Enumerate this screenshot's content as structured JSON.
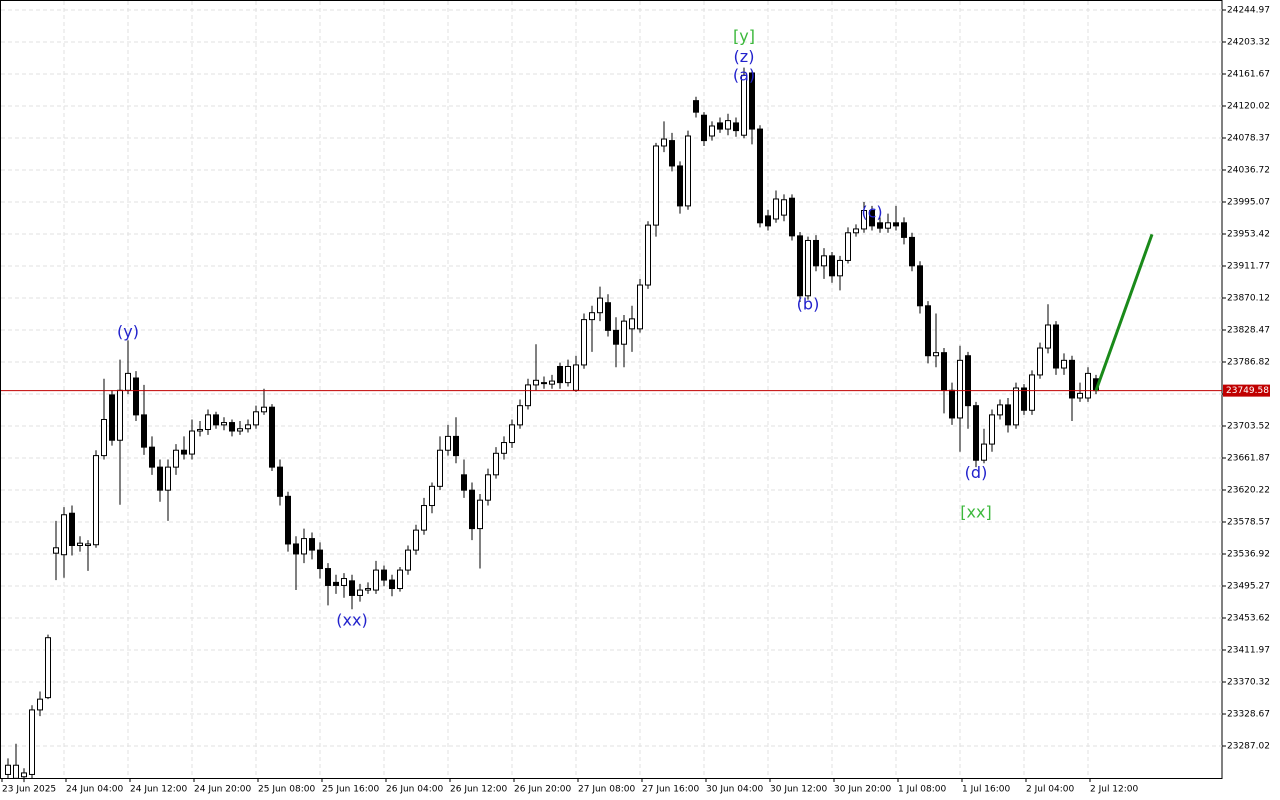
{
  "chart_data": {
    "type": "candlestick",
    "categories": [
      "23 Jun 2025",
      null,
      null,
      null,
      null,
      null,
      null,
      "24 Jun 04:00",
      null,
      null,
      null,
      null,
      null,
      null,
      null,
      "24 Jun 12:00",
      null,
      null,
      null,
      null,
      null,
      null,
      null,
      "24 Jun 20:00",
      null,
      null,
      null,
      null,
      null,
      null,
      null,
      "25 Jun 08:00",
      null,
      null,
      null,
      null,
      null,
      null,
      null,
      "25 Jun 16:00",
      null,
      null,
      null,
      null,
      null,
      null,
      null,
      "26 Jun 04:00",
      null,
      null,
      null,
      null,
      null,
      null,
      null,
      "26 Jun 12:00",
      null,
      null,
      null,
      null,
      null,
      null,
      null,
      "26 Jun 20:00",
      null,
      null,
      null,
      null,
      null,
      null,
      null,
      "27 Jun 08:00",
      null,
      null,
      null,
      null,
      null,
      null,
      null,
      "27 Jun 16:00",
      null,
      null,
      null,
      null,
      null,
      null,
      null,
      "30 Jun 04:00",
      null,
      null,
      null,
      null,
      null,
      null,
      null,
      "30 Jun 12:00",
      null,
      null,
      null,
      null,
      null,
      null,
      null,
      "30 Jun 20:00",
      null,
      null,
      null,
      null,
      null,
      null,
      null,
      "1 Jul 08:00",
      null,
      null,
      null,
      null,
      null,
      null,
      null,
      "1 Jul 16:00",
      null,
      null,
      null,
      null,
      null,
      null,
      null,
      "2 Jul 04:00",
      null,
      null,
      null,
      null,
      null,
      null,
      null,
      "2 Jul 12:00",
      null
    ],
    "open": [
      23250,
      23245,
      23247,
      23250,
      23334,
      23350,
      23538,
      23536,
      23590,
      23548,
      23548,
      23549,
      23665,
      23744,
      23685,
      23750,
      23766,
      23718,
      23676,
      23650,
      23620,
      23650,
      23672,
      23667,
      23697,
      23699,
      23718,
      23705,
      23708,
      23697,
      23700,
      23705,
      23722,
      23728,
      23650,
      23612,
      23550,
      23537,
      23557,
      23542,
      23518,
      23500,
      23496,
      23502,
      23483,
      23490,
      23490,
      23516,
      23503,
      23492,
      23516,
      23542,
      23568,
      23600,
      23625,
      23672,
      23690,
      23640,
      23620,
      23570,
      23607,
      23640,
      23668,
      23682,
      23705,
      23730,
      23757,
      23760,
      23758,
      23781,
      23760,
      23750,
      23783,
      23842,
      23851,
      23864,
      23828,
      23810,
      23830,
      23830,
      23887,
      23965,
      24068,
      24075,
      24042,
      23990,
      24127,
      24108,
      24081,
      24098,
      24090,
      24098,
      24082,
      24163,
      24090,
      23977,
      23973,
      23978,
      24000,
      23951,
      23873,
      23945,
      23912,
      23925,
      23899,
      23919,
      23955,
      23960,
      23984,
      23968,
      23961,
      23968,
      23968,
      23949,
      23912,
      23860,
      23795,
      23799,
      23750,
      23714,
      23795,
      23730,
      23659,
      23680,
      23718,
      23731,
      23705,
      23753,
      23724,
      23770,
      23805,
      23835,
      23779,
      23789,
      23740,
      23740,
      23765
    ],
    "high": [
      23271,
      23290,
      23258,
      23340,
      23358,
      23432,
      23580,
      23598,
      23600,
      23560,
      23555,
      23672,
      23765,
      23750,
      23790,
      23815,
      23775,
      23757,
      23690,
      23660,
      23660,
      23680,
      23690,
      23712,
      23710,
      23725,
      23722,
      23715,
      23712,
      23710,
      23712,
      23730,
      23752,
      23732,
      23660,
      23618,
      23560,
      23570,
      23565,
      23552,
      23525,
      23510,
      23512,
      23510,
      23498,
      23500,
      23528,
      23522,
      23510,
      23520,
      23548,
      23575,
      23610,
      23630,
      23690,
      23705,
      23715,
      23660,
      23630,
      23615,
      23648,
      23676,
      23690,
      23712,
      23738,
      23765,
      23810,
      23768,
      23770,
      23786,
      23790,
      23795,
      23850,
      23860,
      23885,
      23875,
      23845,
      23848,
      23860,
      23895,
      23970,
      24072,
      24100,
      24085,
      24048,
      24088,
      24132,
      24112,
      24100,
      24105,
      24110,
      24105,
      24170,
      24167,
      24095,
      23985,
      24010,
      24005,
      24005,
      23956,
      23950,
      23952,
      23935,
      23930,
      23925,
      23962,
      23966,
      23995,
      23990,
      23975,
      23980,
      23990,
      23975,
      23955,
      23918,
      23866,
      23850,
      23805,
      23760,
      23808,
      23800,
      23735,
      23700,
      23725,
      23738,
      23740,
      23760,
      23758,
      23776,
      23812,
      23862,
      23840,
      23798,
      23795,
      23760,
      23780,
      23770
    ],
    "low": [
      23245,
      23245,
      23240,
      23245,
      23326,
      23348,
      23503,
      23506,
      23535,
      23540,
      23515,
      23545,
      23660,
      23678,
      23601,
      23745,
      23710,
      23666,
      23640,
      23605,
      23580,
      23640,
      23660,
      23660,
      23690,
      23692,
      23700,
      23698,
      23690,
      23692,
      23695,
      23700,
      23718,
      23645,
      23600,
      23540,
      23490,
      23525,
      23530,
      23505,
      23470,
      23485,
      23480,
      23465,
      23475,
      23485,
      23485,
      23495,
      23482,
      23488,
      23510,
      23536,
      23562,
      23590,
      23620,
      23665,
      23655,
      23610,
      23555,
      23518,
      23600,
      23635,
      23660,
      23675,
      23700,
      23725,
      23750,
      23752,
      23752,
      23752,
      23755,
      23748,
      23778,
      23800,
      23840,
      23820,
      23780,
      23780,
      23800,
      23825,
      23882,
      23950,
      24060,
      24035,
      23980,
      23985,
      24105,
      24068,
      24075,
      24085,
      24082,
      24080,
      24078,
      24070,
      23962,
      23958,
      23968,
      23970,
      23945,
      23865,
      23868,
      23905,
      23895,
      23890,
      23880,
      23915,
      23950,
      23955,
      23958,
      23955,
      23955,
      23958,
      23940,
      23905,
      23850,
      23785,
      23780,
      23720,
      23705,
      23670,
      23700,
      23650,
      23655,
      23670,
      23712,
      23695,
      23700,
      23718,
      23718,
      23765,
      23798,
      23770,
      23770,
      23710,
      23735,
      23735,
      23745
    ],
    "close": [
      23262,
      23262,
      23252,
      23334,
      23348,
      23428,
      23545,
      23588,
      23548,
      23551,
      23550,
      23665,
      23712,
      23685,
      23750,
      23772,
      23718,
      23676,
      23650,
      23620,
      23650,
      23672,
      23667,
      23697,
      23699,
      23718,
      23705,
      23708,
      23697,
      23700,
      23705,
      23722,
      23728,
      23650,
      23612,
      23550,
      23537,
      23557,
      23542,
      23518,
      23496,
      23496,
      23505,
      23483,
      23490,
      23492,
      23516,
      23503,
      23492,
      23516,
      23542,
      23568,
      23600,
      23625,
      23672,
      23690,
      23665,
      23620,
      23570,
      23607,
      23640,
      23668,
      23682,
      23705,
      23730,
      23757,
      23763,
      23760,
      23762,
      23760,
      23781,
      23783,
      23842,
      23851,
      23870,
      23828,
      23810,
      23840,
      23843,
      23887,
      23965,
      24068,
      24077,
      24042,
      23990,
      24081,
      24112,
      24075,
      24094,
      24090,
      24101,
      24088,
      24160,
      24090,
      23968,
      23964,
      23999,
      23998,
      23951,
      23873,
      23945,
      23912,
      23925,
      23899,
      23919,
      23955,
      23960,
      23984,
      23964,
      23961,
      23968,
      23964,
      23949,
      23912,
      23860,
      23795,
      23799,
      23750,
      23714,
      23789,
      23730,
      23659,
      23680,
      23718,
      23731,
      23705,
      23753,
      23724,
      23770,
      23805,
      23835,
      23779,
      23789,
      23740,
      23746,
      23772,
      23749.58
    ],
    "bull_color": "#ffffff",
    "bear_color": "#000000",
    "ylim": [
      23245.39,
      24257.99
    ],
    "yticks": [
      24244.97,
      24203.32,
      24161.67,
      24120.02,
      24078.37,
      24036.72,
      23995.07,
      23953.42,
      23911.77,
      23870.12,
      23828.47,
      23786.82,
      23745.17,
      23703.52,
      23661.87,
      23620.22,
      23578.57,
      23536.92,
      23495.27,
      23453.62,
      23411.97,
      23370.32,
      23328.67,
      23287.02
    ],
    "grid": true,
    "last_price": 23749.58,
    "last_price_color": "#c00000",
    "projection": {
      "x": [
        136,
        143
      ],
      "values": [
        23749.58,
        23953
      ],
      "color": "#1a8a1a"
    },
    "annotations": [
      {
        "text": "(y)",
        "x": 15,
        "y": 23825,
        "color": "#2222cc"
      },
      {
        "text": "(xx)",
        "x": 43,
        "y": 23450,
        "color": "#2222cc"
      },
      {
        "text": "[y]",
        "x": 92,
        "y": 24210,
        "color": "#3cb83c"
      },
      {
        "text": "(z)",
        "x": 92,
        "y": 24183,
        "color": "#2222cc"
      },
      {
        "text": "(a)",
        "x": 92,
        "y": 24159,
        "color": "#2222cc"
      },
      {
        "text": "(b)",
        "x": 100,
        "y": 23861,
        "color": "#2222cc"
      },
      {
        "text": "(c)",
        "x": 108,
        "y": 23981,
        "color": "#2222cc"
      },
      {
        "text": "(d)",
        "x": 121,
        "y": 23642,
        "color": "#2222cc"
      },
      {
        "text": "[xx]",
        "x": 121,
        "y": 23590,
        "color": "#3cb83c"
      }
    ]
  }
}
